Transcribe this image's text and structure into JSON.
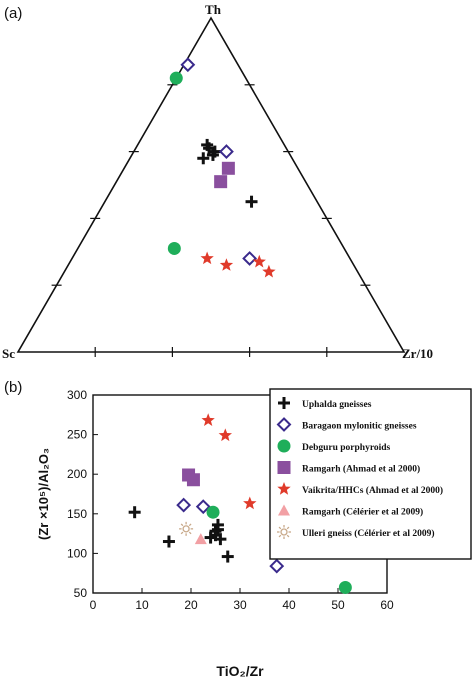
{
  "colors": {
    "uphalda": "#111111",
    "baragaon": "#3a2a8c",
    "debguru": "#1fae5a",
    "ramgarh_ahmad": "#8a4f9e",
    "vaikrita": "#e03a2a",
    "ramgarh_celerier": "#f2a0a4",
    "ulleri": "#c8a98a"
  },
  "chart_data": [
    {
      "panel": "(a)",
      "type": "ternary-scatter",
      "vertices": {
        "top": "Th",
        "left": "Sc",
        "right": "Zr/10"
      },
      "series": [
        {
          "key": "uphalda",
          "marker": "plus",
          "points": [
            [
              0.62,
              0.2,
              0.18
            ],
            [
              0.61,
              0.2,
              0.19
            ],
            [
              0.59,
              0.2,
              0.21
            ],
            [
              0.6,
              0.19,
              0.21
            ],
            [
              0.58,
              0.23,
              0.19
            ],
            [
              0.45,
              0.17,
              0.38
            ]
          ]
        },
        {
          "key": "baragaon",
          "marker": "diamond-open",
          "points": [
            [
              0.86,
              0.13,
              0.01
            ],
            [
              0.6,
              0.16,
              0.24
            ],
            [
              0.28,
              0.26,
              0.46
            ]
          ]
        },
        {
          "key": "debguru",
          "marker": "circle",
          "points": [
            [
              0.82,
              0.18,
              0.0
            ],
            [
              0.31,
              0.44,
              0.25
            ]
          ]
        },
        {
          "key": "ramgarh_ahmad",
          "marker": "square",
          "points": [
            [
              0.55,
              0.18,
              0.27
            ],
            [
              0.51,
              0.22,
              0.27
            ]
          ]
        },
        {
          "key": "vaikrita",
          "marker": "star",
          "points": [
            [
              0.28,
              0.37,
              0.35
            ],
            [
              0.26,
              0.33,
              0.41
            ],
            [
              0.27,
              0.24,
              0.49
            ],
            [
              0.24,
              0.23,
              0.53
            ]
          ]
        }
      ]
    },
    {
      "panel": "(b)",
      "type": "scatter",
      "xlabel": "TiO₂/Zr",
      "ylabel": "(Zr ×10⁵)/Al₂O₃",
      "xlim": [
        0,
        60
      ],
      "ylim": [
        50,
        300
      ],
      "xticks": [
        "0",
        "10",
        "20",
        "30",
        "40",
        "50",
        "60"
      ],
      "yticks": [
        "50",
        "100",
        "150",
        "200",
        "250",
        "300"
      ],
      "legend_position": "top-right",
      "series": [
        {
          "key": "uphalda",
          "name": "Uphalda gneisses",
          "marker": "plus",
          "points": [
            [
              8.5,
              152
            ],
            [
              15.5,
              115
            ],
            [
              24,
              120
            ],
            [
              25,
              123
            ],
            [
              25.5,
              130
            ],
            [
              26,
              118
            ],
            [
              25,
              128
            ],
            [
              25.5,
              136
            ],
            [
              27.5,
              96
            ]
          ]
        },
        {
          "key": "baragaon",
          "name": "Baragaon mylonitic gneisses",
          "marker": "diamond-open",
          "points": [
            [
              18.5,
              161
            ],
            [
              22.5,
              159
            ],
            [
              37.5,
              84
            ]
          ]
        },
        {
          "key": "debguru",
          "name": "Debguru porphyroids",
          "marker": "circle",
          "points": [
            [
              24.5,
              152
            ],
            [
              51.5,
              57
            ]
          ]
        },
        {
          "key": "ramgarh_ahmad",
          "name": "Ramgarh (Ahmad et al 2000)",
          "marker": "square",
          "points": [
            [
              19.5,
              199
            ],
            [
              20.5,
              193
            ]
          ]
        },
        {
          "key": "vaikrita",
          "name": "Vaikrita/HHCs (Ahmad et al 2000)",
          "marker": "star",
          "points": [
            [
              23.5,
              268
            ],
            [
              27,
              249
            ],
            [
              32,
              163
            ],
            [
              41,
              139
            ]
          ]
        },
        {
          "key": "ramgarh_celerier",
          "name": "Ramgarh (Célérier et al 2009)",
          "marker": "triangle",
          "points": [
            [
              22,
              118
            ]
          ]
        },
        {
          "key": "ulleri",
          "name": "Ulleri gneiss (Célérier et al 2009)",
          "marker": "sun-open",
          "points": [
            [
              19,
              131
            ]
          ]
        }
      ]
    }
  ]
}
